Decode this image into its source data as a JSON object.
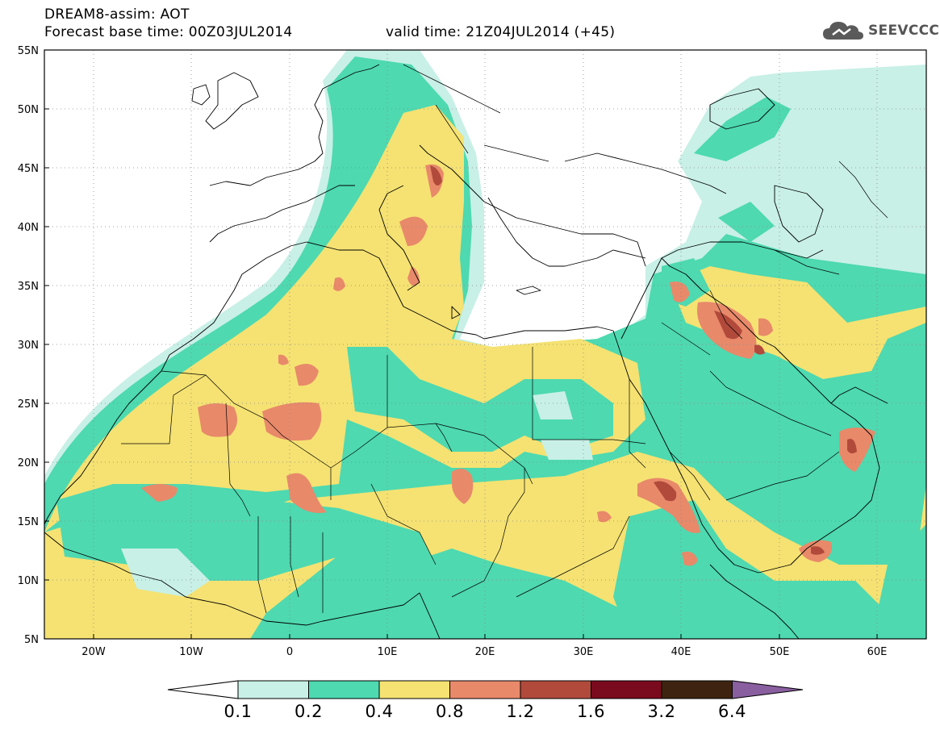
{
  "header": {
    "title": "DREAM8-assim: AOT",
    "base_time": "Forecast base time: 00Z03JUL2014",
    "valid_time": "valid time: 21Z04JUL2014 (+45)"
  },
  "logo": {
    "text": "SEEVCCC",
    "icon": "cloud-logo-icon"
  },
  "map": {
    "lat_labels": [
      "55N",
      "50N",
      "45N",
      "40N",
      "35N",
      "30N",
      "25N",
      "20N",
      "15N",
      "10N",
      "5N"
    ],
    "lon_labels": [
      "20W",
      "10W",
      "0",
      "10E",
      "20E",
      "30E",
      "40E",
      "50E",
      "60E"
    ],
    "grid": "dotted",
    "lon_range": [
      -25,
      65
    ],
    "lat_range": [
      5,
      55
    ]
  },
  "colorbar": {
    "labels": [
      "0.1",
      "0.2",
      "0.4",
      "0.8",
      "1.2",
      "1.6",
      "3.2",
      "6.4"
    ],
    "colors": [
      "#ffffff",
      "#c8f0e6",
      "#4ed9b0",
      "#f5e272",
      "#e8896a",
      "#b24a3c",
      "#7a0a1e",
      "#3e2410",
      "#8a5fa0"
    ]
  }
}
